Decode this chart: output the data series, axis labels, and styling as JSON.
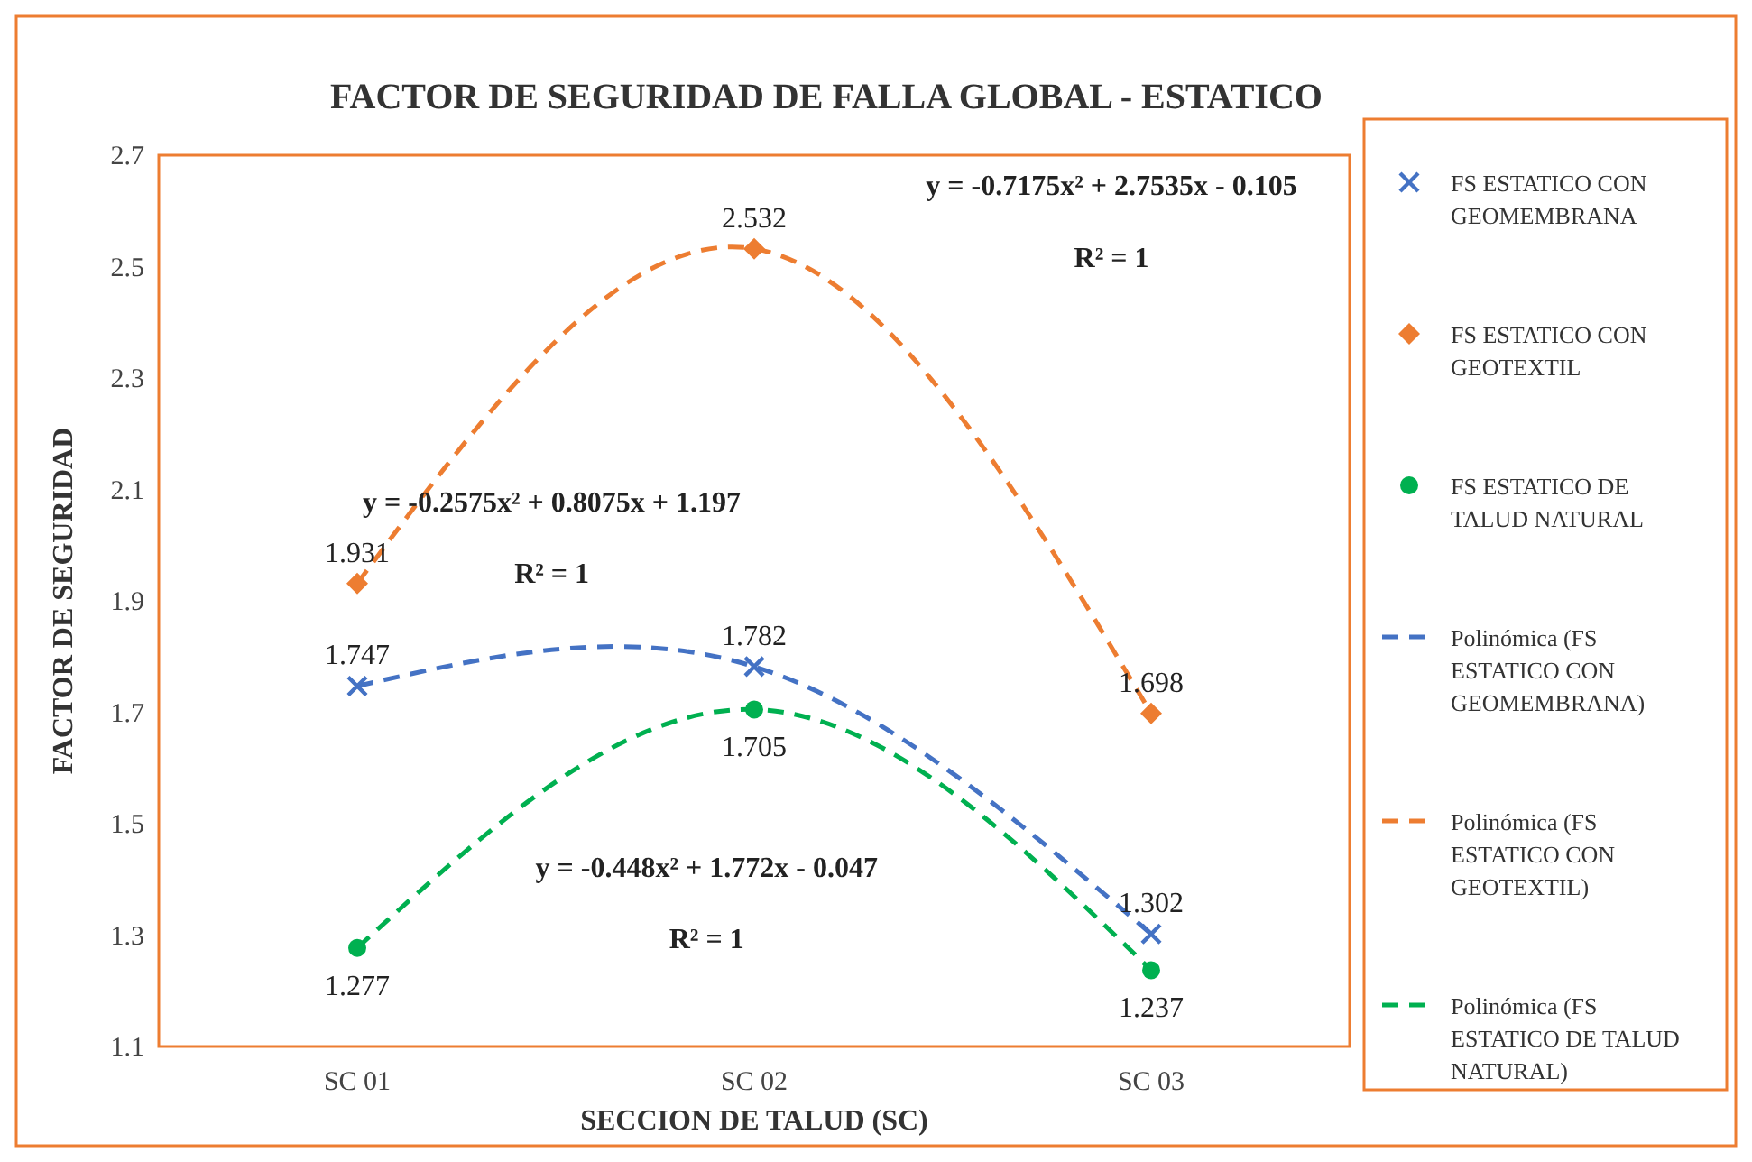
{
  "chart_data": {
    "type": "scatter",
    "title": "FACTOR DE SEGURIDAD DE FALLA GLOBAL - ESTATICO",
    "xlabel": "SECCION DE TALUD (SC)",
    "ylabel": "FACTOR DE SEGURIDAD",
    "categories": [
      "SC 01",
      "SC 02",
      "SC 03"
    ],
    "ylim": [
      1.1,
      2.7
    ],
    "yticks": [
      1.1,
      1.3,
      1.5,
      1.7,
      1.9,
      2.1,
      2.3,
      2.5,
      2.7
    ],
    "grid": false,
    "legend": "right",
    "series": [
      {
        "name": "FS ESTATICO CON GEOMEMBRANA",
        "color": "#4472c4",
        "marker": "cross",
        "values": [
          1.747,
          1.782,
          1.302
        ],
        "value_labels": [
          "1.747",
          "1.782",
          "1.302"
        ]
      },
      {
        "name": "FS ESTATICO CON GEOTEXTIL",
        "color": "#ed7d31",
        "marker": "diamond",
        "values": [
          1.931,
          2.532,
          1.698
        ],
        "value_labels": [
          "1.931",
          "2.532",
          "1.698"
        ]
      },
      {
        "name": "FS ESTATICO DE TALUD NATURAL",
        "color": "#00b050",
        "marker": "circle",
        "values": [
          1.277,
          1.705,
          1.237
        ],
        "value_labels": [
          "1.277",
          "1.705",
          "1.237"
        ]
      },
      {
        "name": "Polinómica (FS ESTATICO CON GEOMEMBRANA)",
        "type": "line",
        "line_style": "dashed",
        "color": "#4472c4",
        "values": [
          1.747,
          1.782,
          1.302
        ]
      },
      {
        "name": "Polinómica (FS ESTATICO CON GEOTEXTIL)",
        "type": "line",
        "line_style": "dashed",
        "color": "#ed7d31",
        "values": [
          1.931,
          2.532,
          1.698
        ]
      },
      {
        "name": "Polinómica (FS ESTATICO DE TALUD NATURAL)",
        "type": "line",
        "line_style": "dashed",
        "color": "#00b050",
        "values": [
          1.277,
          1.705,
          1.237
        ]
      }
    ],
    "annotations": [
      "y = -0.7175x² + 2.7535x - 0.105",
      "R² = 1",
      "y = -0.2575x² + 0.8075x + 1.197",
      "R² = 1",
      "y = -0.448x² + 1.772x - 0.047",
      "R² = 1"
    ]
  }
}
